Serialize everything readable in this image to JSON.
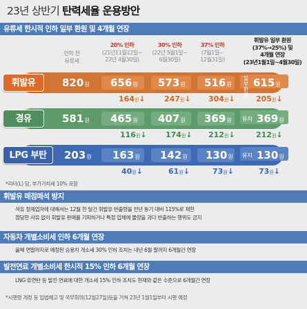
{
  "title": {
    "thin": "23년 상반기",
    "bold": "탄력세율 운용방안"
  },
  "sections": {
    "s1": "유류세 한시적 인하 일부 환원 및 4개월 연장",
    "s2": "휘발유 매점매석 방지",
    "s3": "자동차 개별소비세 인하 6개월 연장",
    "s4": "발전연료 개별소비세 한시적 15% 인하 6개월 연장"
  },
  "columns": {
    "c1": [
      "인하 전",
      "유류세"
    ],
    "c2": {
      "pct": "20% 인하",
      "line1": "(21년11월12일~",
      "line2": "22년 4월30일)"
    },
    "c3": {
      "pct": "30% 인하",
      "line1": "(22년 5월1일~",
      "line2": "6월30일)"
    },
    "c4": {
      "pct": "37% 인하",
      "line1": "(7월1일~",
      "line2": "12월31일)"
    },
    "c5": [
      "휘발유 일부 환원",
      "(37%→25%) 및",
      "4개월 연장",
      "(23년1월1일~4월30일)"
    ]
  },
  "unit": "원",
  "rows": [
    {
      "label": "휘발유",
      "base": "820",
      "v1": "656",
      "v2": "573",
      "v3": "516",
      "side": "일부 환원",
      "v4": "615",
      "d1": "164",
      "d2": "247",
      "d3": "304",
      "d4": "205"
    },
    {
      "label": "경유",
      "base": "581",
      "v1": "465",
      "v2": "407",
      "v3": "369",
      "side": "유지",
      "v4": "369",
      "d1": "116",
      "d2": "174",
      "d3": "212",
      "d4": "212"
    },
    {
      "label": "LPG 부탄",
      "base": "203",
      "v1": "163",
      "v2": "142",
      "v3": "130",
      "side": "유지",
      "v4": "130",
      "d1": "40",
      "d2": "61",
      "d3": "73",
      "d4": "73"
    }
  ],
  "arrow": "↓",
  "note1": "*리터(L) 당, 부가가치세 10% 포함",
  "text2": [
    "석유 정제업자에 대해서는 12월 한 달간 휘발유 반출량을 전년 동기 대비 115%로 제한",
    "정당한 사유 없이 휘발유 판매를 기피하거나 특정 업체에 물량을 과다 반출하는 행위도 금지"
  ],
  "text3": "올해 연말까지로 예정된 승용차 개소세 30% 인하 조치는 내년 6월 말까지 6개월간 연장",
  "text4": "LNG·유연탄 등 발전 연료에 대한 개소세 15% 인하 조치도 현재와 같은 수준으로 6개월간 연장",
  "note2": "*시행령 개정 등 입법예고 및 국무회의(12월27일)등을 거쳐 23년 1월1일부터 시행 예정",
  "colors": {
    "orange": "#d27434",
    "green": "#5e9a6a",
    "blue": "#3d6ab3",
    "header": "#4f7bb8"
  }
}
